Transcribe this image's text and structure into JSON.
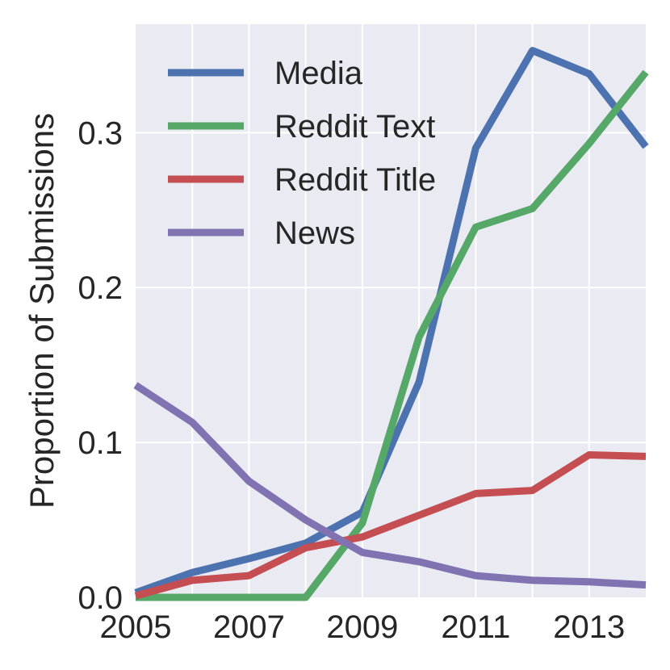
{
  "chart_data": {
    "type": "line",
    "title": "",
    "xlabel": "",
    "ylabel": "Proportion of Submissions",
    "x": [
      2005,
      2006,
      2007,
      2008,
      2009,
      2010,
      2011,
      2012,
      2013,
      2014
    ],
    "xlim": [
      2005,
      2014
    ],
    "ylim": [
      0,
      0.37
    ],
    "xticks": [
      2005,
      2007,
      2009,
      2011,
      2013
    ],
    "xtick_labels": [
      "2005",
      "2007",
      "2009",
      "2011",
      "2013"
    ],
    "yticks": [
      0,
      0.1,
      0.2,
      0.3
    ],
    "ytick_labels": [
      "0.0",
      "0.1",
      "0.2",
      "0.3"
    ],
    "grid": true,
    "background": "#eaeaf2",
    "legend_position": "top-left",
    "series": [
      {
        "name": "Media",
        "color": "#4c72b0",
        "values": [
          0.003,
          0.016,
          0.025,
          0.035,
          0.055,
          0.139,
          0.29,
          0.353,
          0.338,
          0.291
        ]
      },
      {
        "name": "Reddit Text",
        "color": "#55a868",
        "values": [
          0.0,
          0.0,
          0.0,
          0.0,
          0.048,
          0.168,
          0.239,
          0.251,
          0.293,
          0.339
        ]
      },
      {
        "name": "Reddit Title",
        "color": "#c44e52",
        "values": [
          0.001,
          0.011,
          0.014,
          0.032,
          0.039,
          0.053,
          0.067,
          0.069,
          0.092,
          0.091
        ]
      },
      {
        "name": "News",
        "color": "#8172b2",
        "values": [
          0.137,
          0.113,
          0.075,
          0.05,
          0.029,
          0.023,
          0.014,
          0.011,
          0.01,
          0.008
        ]
      }
    ]
  }
}
